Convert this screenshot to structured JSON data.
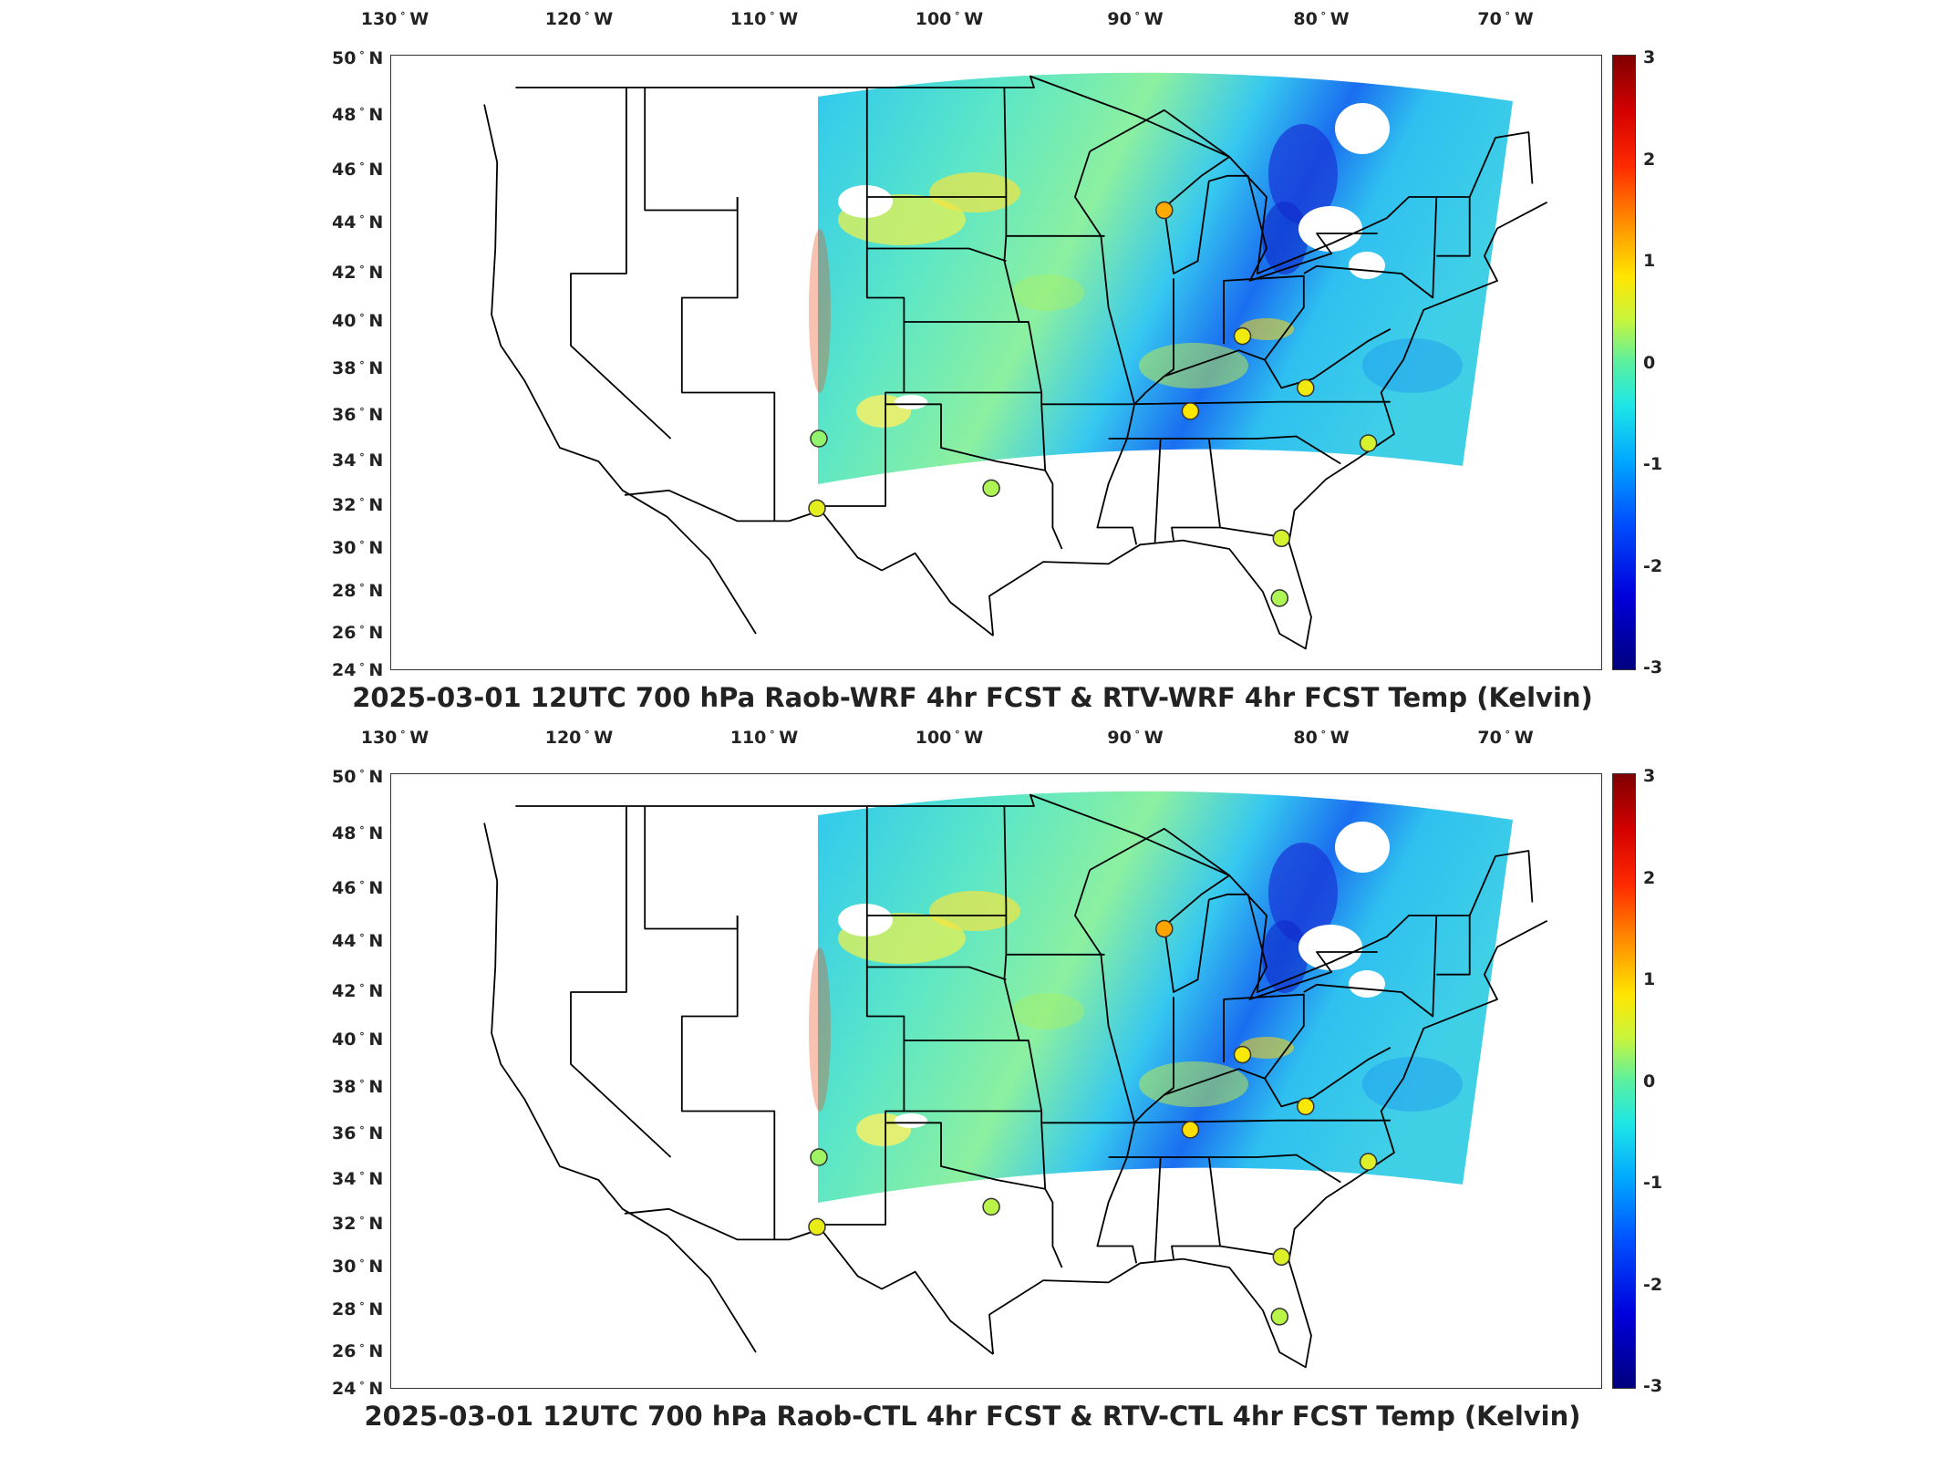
{
  "maps": [
    {
      "title": "2025-03-01 12UTC 700 hPa Raob-WRF 4hr FCST & RTV-WRF 4hr FCST Temp (Kelvin)"
    },
    {
      "title": "2025-03-01 12UTC 700 hPa Raob-CTL 4hr FCST & RTV-CTL 4hr FCST Temp (Kelvin)"
    }
  ],
  "longitude_labels": [
    {
      "value": "130",
      "hemi": "W"
    },
    {
      "value": "120",
      "hemi": "W"
    },
    {
      "value": "110",
      "hemi": "W"
    },
    {
      "value": "100",
      "hemi": "W"
    },
    {
      "value": "90",
      "hemi": "W"
    },
    {
      "value": "80",
      "hemi": "W"
    },
    {
      "value": "70",
      "hemi": "W"
    }
  ],
  "latitude_labels": [
    {
      "value": "50",
      "hemi": "N"
    },
    {
      "value": "48",
      "hemi": "N"
    },
    {
      "value": "46",
      "hemi": "N"
    },
    {
      "value": "44",
      "hemi": "N"
    },
    {
      "value": "42",
      "hemi": "N"
    },
    {
      "value": "40",
      "hemi": "N"
    },
    {
      "value": "38",
      "hemi": "N"
    },
    {
      "value": "36",
      "hemi": "N"
    },
    {
      "value": "34",
      "hemi": "N"
    },
    {
      "value": "32",
      "hemi": "N"
    },
    {
      "value": "30",
      "hemi": "N"
    },
    {
      "value": "28",
      "hemi": "N"
    },
    {
      "value": "26",
      "hemi": "N"
    },
    {
      "value": "24",
      "hemi": "N"
    }
  ],
  "colorbar": {
    "ticks": [
      "3",
      "2",
      "1",
      "0",
      "-1",
      "-2",
      "-3"
    ],
    "range": [
      -3,
      3
    ]
  },
  "colors": {
    "background_field": "#4fd8e8",
    "border_lines": "#000000"
  },
  "stations": [
    {
      "lon": -88.0,
      "lat": 44.5,
      "value": 1.2
    },
    {
      "lon": -83.8,
      "lat": 39.4,
      "value": 0.7
    },
    {
      "lon": -80.4,
      "lat": 37.2,
      "value": 0.7
    },
    {
      "lon": -86.6,
      "lat": 36.2,
      "value": 0.8
    },
    {
      "lon": -77.0,
      "lat": 34.8,
      "value": 0.5
    },
    {
      "lon": -106.6,
      "lat": 35.0,
      "value": 0.2
    },
    {
      "lon": -106.7,
      "lat": 31.9,
      "value": 0.6
    },
    {
      "lon": -97.3,
      "lat": 32.8,
      "value": 0.3
    },
    {
      "lon": -81.7,
      "lat": 30.5,
      "value": 0.5
    },
    {
      "lon": -81.8,
      "lat": 27.7,
      "value": 0.3
    }
  ]
}
